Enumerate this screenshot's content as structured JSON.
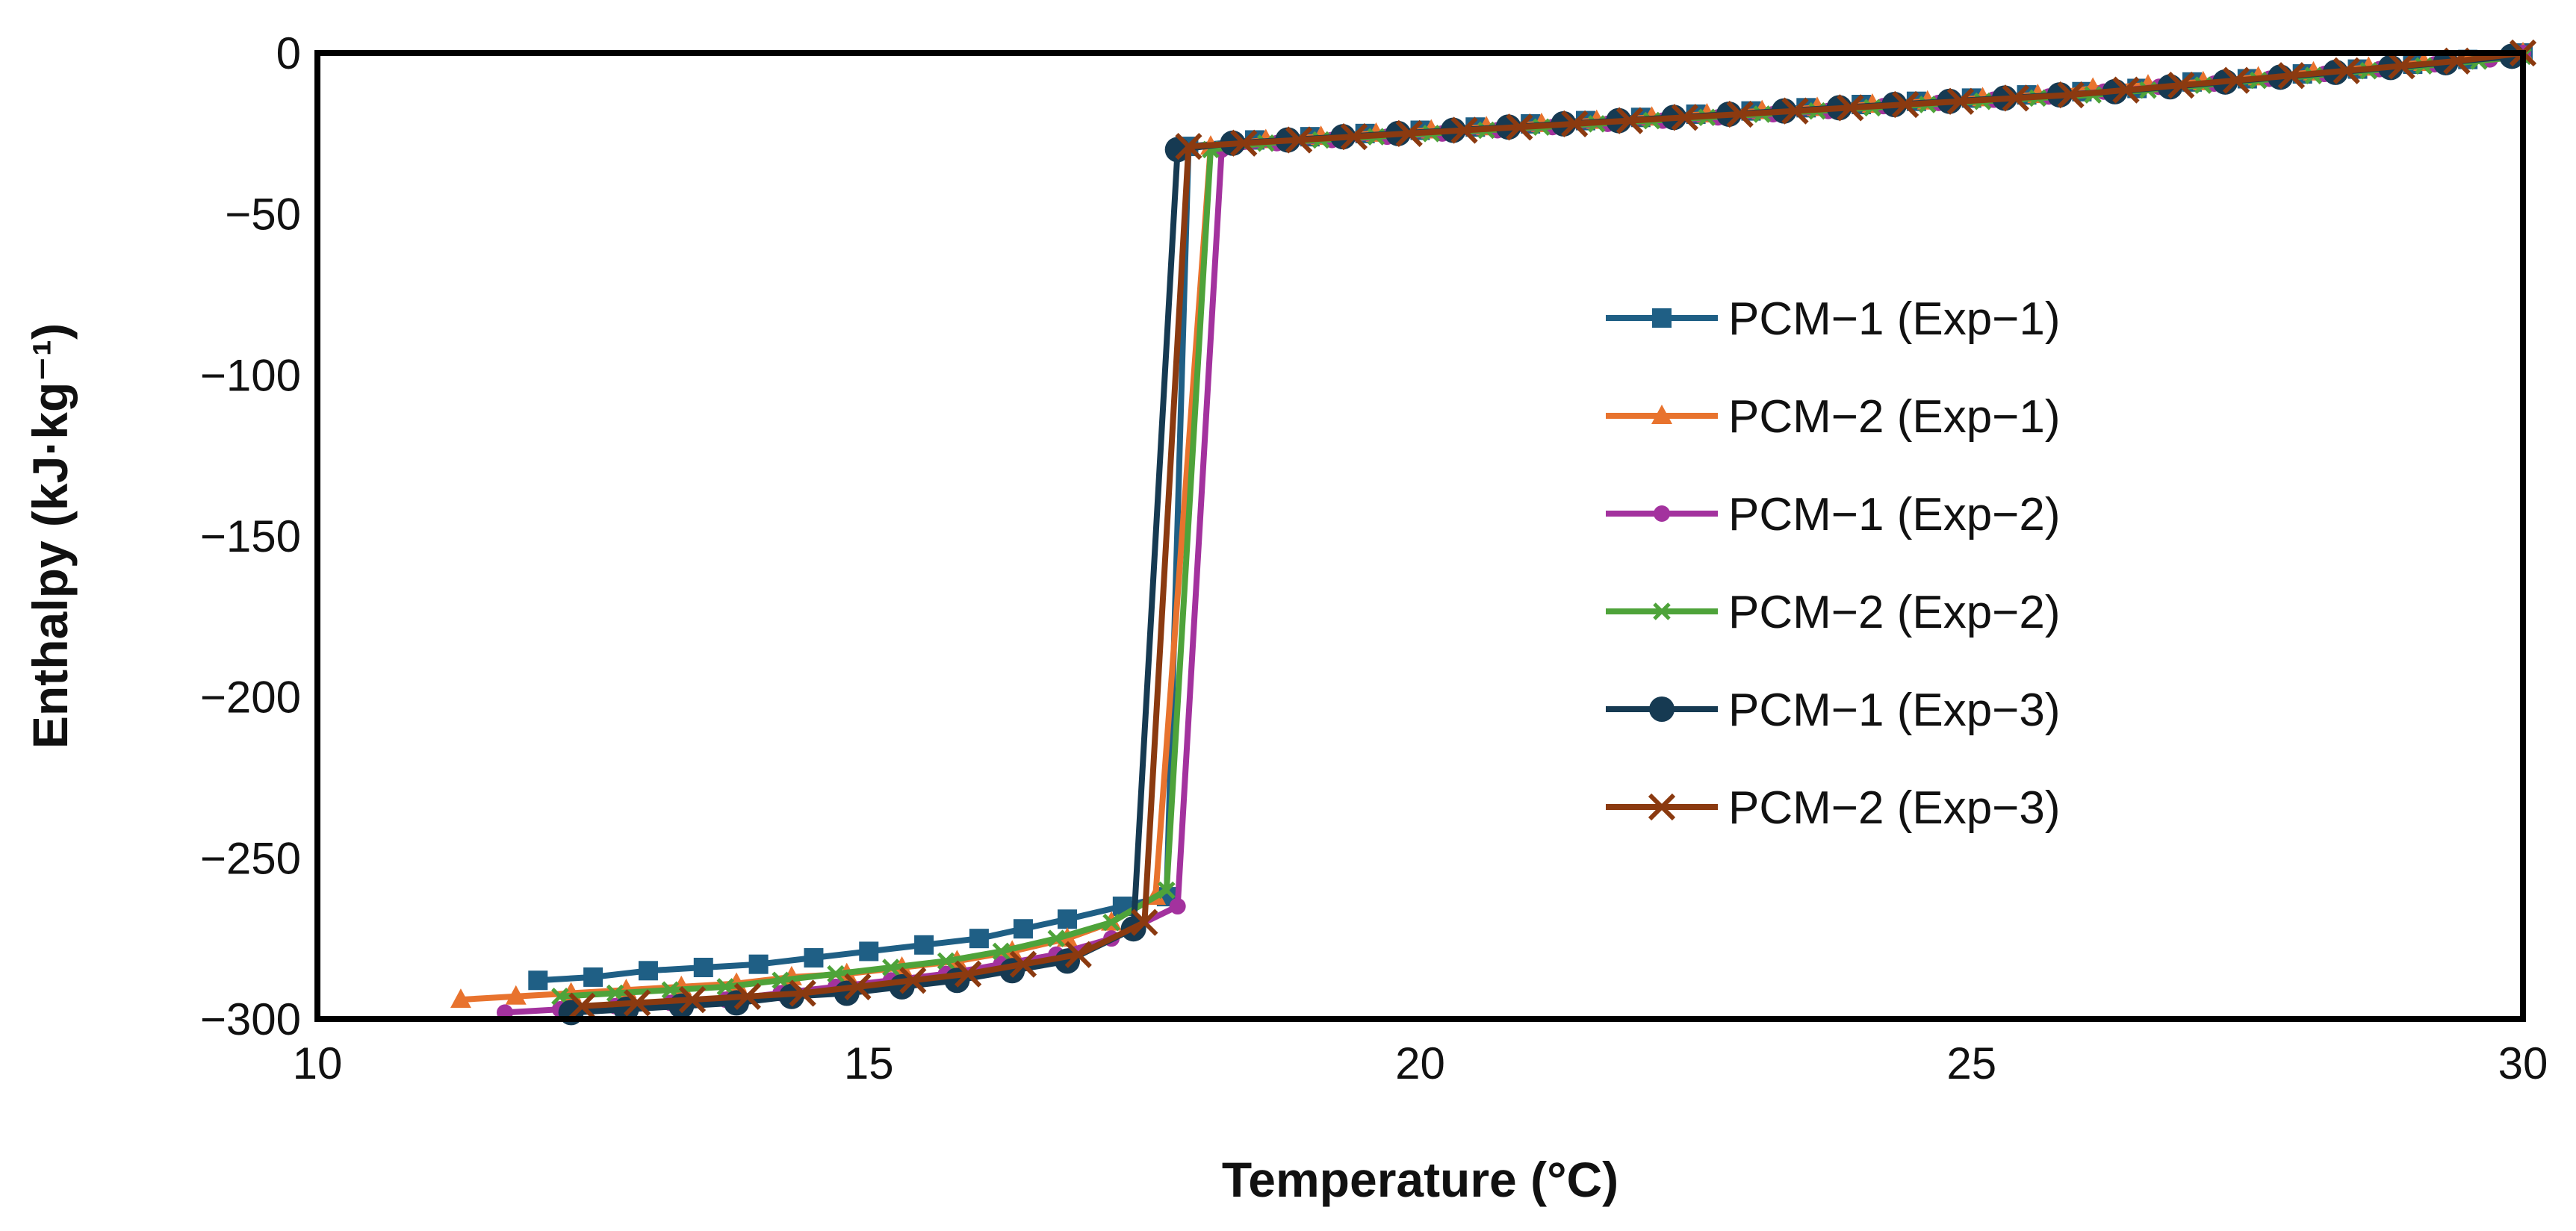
{
  "chart_data": {
    "type": "line",
    "title": "",
    "xlabel": "Temperature (°C)",
    "ylabel": "Enthalpy (kJ·kg⁻¹)",
    "xlim": [
      10,
      30
    ],
    "ylim": [
      -300,
      0
    ],
    "xticks": [
      "10",
      "15",
      "20",
      "25",
      "30"
    ],
    "yticks": [
      "0",
      "−50",
      "−100",
      "−150",
      "−200",
      "−250",
      "−300"
    ],
    "grid": false,
    "legend_position": "center-right",
    "series": [
      {
        "name": "PCM−1 (Exp−1)",
        "color": "#1f5f85",
        "marker": "square",
        "x": [
          12.0,
          12.5,
          13.0,
          13.5,
          14.0,
          14.5,
          15.0,
          15.5,
          16.0,
          16.4,
          16.8,
          17.3,
          17.7,
          17.9,
          18.5,
          19.0,
          19.5,
          20.0,
          20.5,
          21.0,
          21.5,
          22.0,
          22.5,
          23.0,
          23.5,
          24.0,
          24.5,
          25.0,
          25.5,
          26.0,
          26.5,
          27.0,
          27.5,
          28.0,
          28.5,
          29.0,
          29.5,
          30.0
        ],
        "y": [
          -288,
          -287,
          -285,
          -284,
          -283,
          -281,
          -279,
          -277,
          -275,
          -272,
          -269,
          -265,
          -262,
          -29,
          -27,
          -26,
          -25,
          -24,
          -23,
          -22,
          -21,
          -20,
          -19,
          -18,
          -17,
          -16,
          -15,
          -14,
          -13,
          -12,
          -11,
          -9,
          -8,
          -6.5,
          -5,
          -3.5,
          -2,
          0
        ]
      },
      {
        "name": "PCM−2 (Exp−1)",
        "color": "#e8732e",
        "marker": "triangle",
        "x": [
          11.3,
          11.8,
          12.3,
          12.8,
          13.3,
          13.8,
          14.3,
          14.8,
          15.3,
          15.8,
          16.3,
          16.8,
          17.2,
          17.6,
          18.1,
          18.6,
          19.1,
          19.6,
          20.1,
          20.6,
          21.1,
          21.6,
          22.1,
          22.6,
          23.1,
          23.6,
          24.1,
          24.6,
          25.1,
          25.6,
          26.1,
          26.6,
          27.1,
          27.6,
          28.1,
          28.6,
          29.1,
          30.0
        ],
        "y": [
          -294,
          -293,
          -292,
          -291,
          -290,
          -289,
          -287,
          -286,
          -284,
          -282,
          -279,
          -275,
          -270,
          -262,
          -29,
          -27,
          -26,
          -25,
          -24,
          -23,
          -22,
          -21,
          -20,
          -19,
          -18,
          -17,
          -16,
          -15,
          -14,
          -13,
          -11,
          -10,
          -9,
          -7.5,
          -6,
          -4.5,
          -3,
          0
        ]
      },
      {
        "name": "PCM−1 (Exp−2)",
        "color": "#a3329e",
        "marker": "circle",
        "x": [
          11.7,
          12.2,
          12.7,
          13.2,
          13.7,
          14.2,
          14.7,
          15.2,
          15.7,
          16.2,
          16.7,
          17.2,
          17.8,
          18.2,
          18.7,
          19.2,
          19.7,
          20.2,
          20.7,
          21.2,
          21.7,
          22.2,
          22.7,
          23.2,
          23.7,
          24.2,
          24.7,
          25.2,
          25.7,
          26.2,
          26.7,
          27.2,
          27.7,
          28.2,
          28.7,
          29.2,
          29.7,
          30.0
        ],
        "y": [
          -298,
          -297,
          -296,
          -295,
          -294,
          -292,
          -290,
          -288,
          -286,
          -283,
          -280,
          -275,
          -265,
          -30,
          -28,
          -27,
          -26,
          -25,
          -24,
          -23,
          -22,
          -21,
          -20,
          -19,
          -18,
          -16.5,
          -15.5,
          -14.5,
          -13.5,
          -12,
          -10.5,
          -9.5,
          -8,
          -6.5,
          -5,
          -3.5,
          -2,
          0
        ]
      },
      {
        "name": "PCM−2 (Exp−2)",
        "color": "#4ea33a",
        "marker": "x",
        "x": [
          12.2,
          12.7,
          13.2,
          13.7,
          14.2,
          14.7,
          15.2,
          15.7,
          16.2,
          16.7,
          17.2,
          17.7,
          18.1,
          18.6,
          19.1,
          19.6,
          20.1,
          20.6,
          21.1,
          21.6,
          22.1,
          22.6,
          23.1,
          23.6,
          24.1,
          24.6,
          25.1,
          25.6,
          26.1,
          26.6,
          27.1,
          27.6,
          28.1,
          28.6,
          29.1,
          29.6,
          30.0
        ],
        "y": [
          -293,
          -292,
          -291,
          -290,
          -288,
          -286,
          -284,
          -282,
          -279,
          -275,
          -270,
          -260,
          -30,
          -28,
          -27,
          -26,
          -25,
          -24,
          -23,
          -22,
          -21,
          -20,
          -19,
          -18,
          -17,
          -16,
          -15,
          -14,
          -13,
          -11.5,
          -10,
          -8.5,
          -7,
          -5.5,
          -4,
          -2.5,
          -1
        ]
      },
      {
        "name": "PCM−1 (Exp−3)",
        "color": "#163a52",
        "marker": "circle-large",
        "x": [
          12.3,
          12.8,
          13.3,
          13.8,
          14.3,
          14.8,
          15.3,
          15.8,
          16.3,
          16.8,
          17.4,
          17.8,
          18.3,
          18.8,
          19.3,
          19.8,
          20.3,
          20.8,
          21.3,
          21.8,
          22.3,
          22.8,
          23.3,
          23.8,
          24.3,
          24.8,
          25.3,
          25.8,
          26.3,
          26.8,
          27.3,
          27.8,
          28.3,
          28.8,
          29.3,
          29.9
        ],
        "y": [
          -298,
          -297,
          -296,
          -295,
          -293,
          -292,
          -290,
          -288,
          -285,
          -282,
          -272,
          -30,
          -28,
          -27,
          -26,
          -25,
          -24,
          -23,
          -22,
          -21,
          -20,
          -19,
          -18,
          -17,
          -16,
          -15,
          -14,
          -13,
          -12,
          -10.5,
          -9,
          -7.5,
          -6,
          -4.5,
          -3,
          -1
        ]
      },
      {
        "name": "PCM−2 (Exp−3)",
        "color": "#8b3a10",
        "marker": "x-large",
        "x": [
          12.4,
          12.9,
          13.4,
          13.9,
          14.4,
          14.9,
          15.4,
          15.9,
          16.4,
          16.9,
          17.5,
          17.9,
          18.4,
          18.9,
          19.4,
          19.9,
          20.4,
          20.9,
          21.4,
          21.9,
          22.4,
          22.9,
          23.4,
          23.9,
          24.4,
          24.9,
          25.4,
          25.9,
          26.4,
          26.9,
          27.4,
          27.9,
          28.4,
          28.9,
          29.4,
          30.0
        ],
        "y": [
          -296,
          -295,
          -294,
          -293,
          -292,
          -290,
          -288,
          -286,
          -283,
          -280,
          -270,
          -29,
          -28,
          -27,
          -26,
          -25,
          -24,
          -23,
          -22,
          -21,
          -20,
          -19,
          -18,
          -17,
          -16,
          -15,
          -14,
          -13,
          -11.5,
          -10,
          -8.5,
          -7,
          -5.5,
          -4,
          -2.5,
          0
        ]
      }
    ]
  }
}
